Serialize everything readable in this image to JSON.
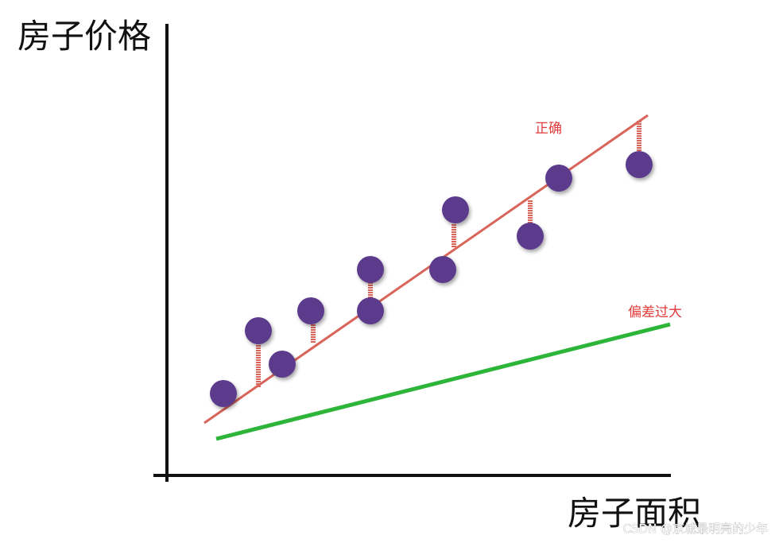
{
  "y_axis_label": "房子价格",
  "x_axis_label": "房子面积",
  "annotations": {
    "correct": "正确",
    "bias": "偏差过大"
  },
  "watermark": "CSDN @京城最明亮的少年"
}
